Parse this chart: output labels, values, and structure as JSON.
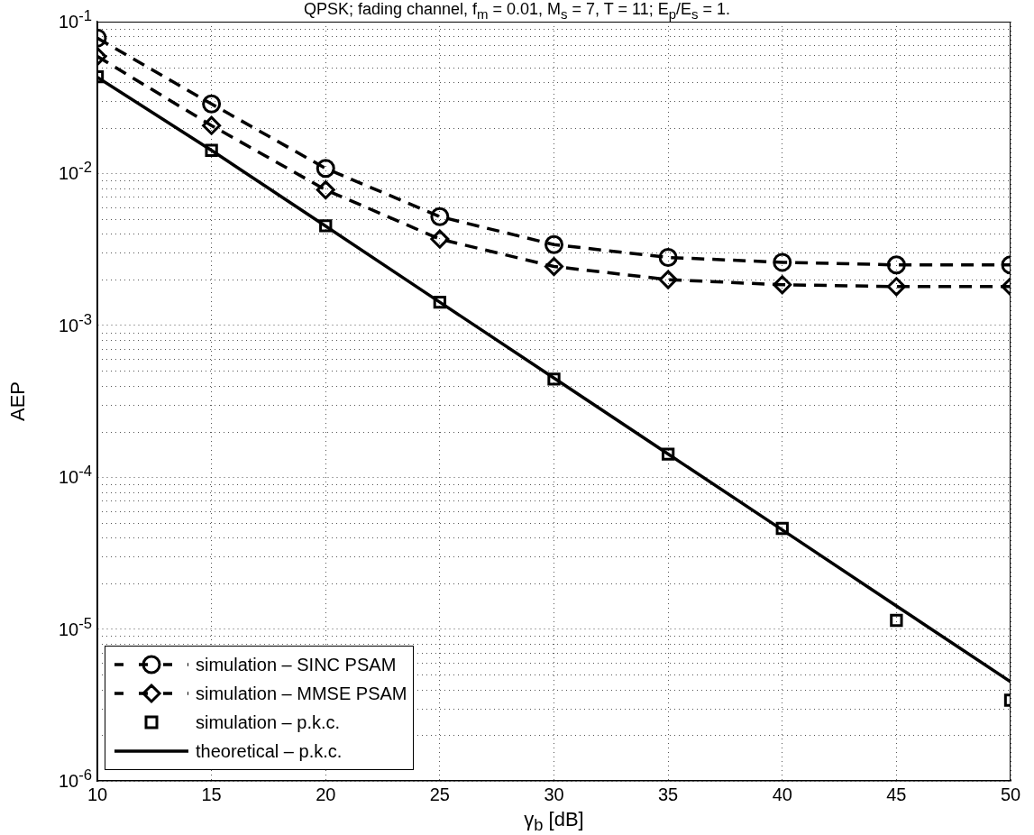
{
  "chart_data": {
    "type": "line",
    "title": "QPSK; fading channel, f$_{m}$ = 0.01, M$_{s}$ = 7, T = 11; E$_{p}$/E$_{s}$ = 1.",
    "xlabel": "γ$_{b}$ [dB]",
    "ylabel": "AEP",
    "x": [
      10,
      15,
      20,
      25,
      30,
      35,
      40,
      45,
      50
    ],
    "series": [
      {
        "name": "simulation – SINC PSAM",
        "color": "#000000",
        "marker": "circle",
        "line_style": "dashed",
        "values": [
          0.078,
          0.0287,
          0.0108,
          0.0052,
          0.0034,
          0.0028,
          0.0026,
          0.0025,
          0.0025
        ]
      },
      {
        "name": "simulation – MMSE PSAM",
        "color": "#000000",
        "marker": "diamond",
        "line_style": "dashed",
        "values": [
          0.059,
          0.0207,
          0.0078,
          0.0037,
          0.00244,
          0.002,
          0.00185,
          0.0018,
          0.0018
        ]
      },
      {
        "name": "simulation – p.k.c.",
        "type": "scatter",
        "color": "#000000",
        "marker": "square",
        "values": [
          0.0433,
          0.0142,
          0.00453,
          0.00142,
          0.000443,
          0.000142,
          4.6e-05,
          1.14e-05,
          3.4e-06
        ]
      },
      {
        "name": "theoretical – p.k.c.",
        "color": "#000000",
        "marker": "none",
        "line_style": "solid",
        "values": [
          0.043,
          0.0142,
          0.0045,
          0.00142,
          0.00045,
          0.000142,
          4.5e-05,
          1.42e-05,
          4.5e-06
        ]
      }
    ],
    "log": "y",
    "xlim": [
      10,
      50
    ],
    "xticks": [
      10,
      15,
      20,
      25,
      30,
      35,
      40,
      45,
      50
    ],
    "ylim": [
      1e-06,
      0.1
    ],
    "yticks": [
      {
        "value": 1e-06,
        "label": "10$^{-6}$"
      },
      {
        "value": 1e-05,
        "label": "10$^{-5}$"
      },
      {
        "value": 0.0001,
        "label": "10$^{-4}$"
      },
      {
        "value": 0.001,
        "label": "10$^{-3}$"
      },
      {
        "value": 0.01,
        "label": "10$^{-2}$"
      },
      {
        "value": 0.1,
        "label": "10$^{-1}$"
      }
    ],
    "grid": true,
    "legend": "bottom left"
  }
}
